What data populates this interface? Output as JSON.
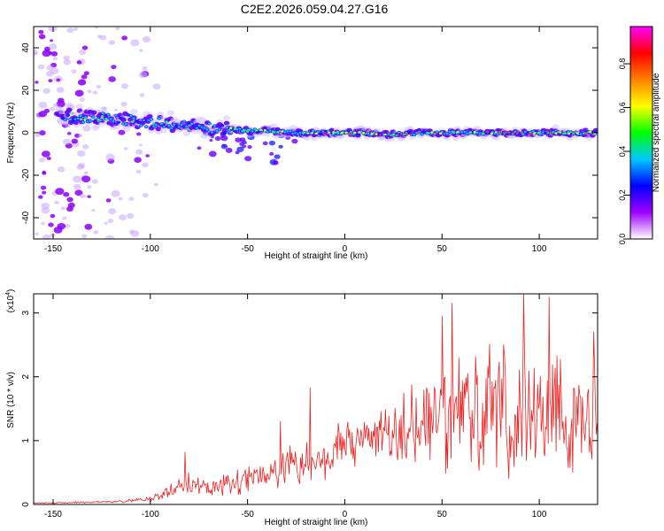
{
  "title": "C2E2.2026.059.04.27.G16",
  "chart_data": [
    {
      "type": "heatmap",
      "xlabel": "Height of straight line (km)",
      "ylabel": "Frequency (Hz)",
      "xlim": [
        -160,
        130
      ],
      "ylim": [
        -50,
        50
      ],
      "xticks": [
        -150,
        -100,
        -50,
        0,
        50,
        100
      ],
      "yticks": [
        -40,
        -20,
        0,
        20,
        40
      ],
      "ridge": {
        "x": [
          -145,
          -130,
          -110,
          -100,
          -90,
          -80,
          -70,
          -60,
          -50,
          -40,
          -30,
          -20,
          -10,
          0,
          10,
          20,
          40,
          60,
          80,
          100,
          130
        ],
        "freq": [
          8,
          7,
          6,
          5,
          4,
          3,
          2,
          2,
          1,
          1,
          0,
          0,
          0,
          0,
          0,
          -1,
          0,
          0,
          0,
          0,
          0
        ]
      },
      "colorbar": {
        "label": "Normalized spectral amplitude",
        "range": [
          0,
          0.97
        ],
        "ticks": [
          0,
          0.2,
          0.4,
          0.6,
          0.8
        ],
        "tick_labels": [
          "0.0",
          "0.2",
          "0.4",
          "0.6",
          "0.8"
        ],
        "colors": [
          "#ffffff",
          "#a000ff",
          "#0000ff",
          "#00c8ff",
          "#00ff00",
          "#ffff00",
          "#ff8000",
          "#ff0000",
          "#ff00ff"
        ]
      }
    },
    {
      "type": "line",
      "xlabel": "Height of straight line (km)",
      "ylabel": "SNR (10 * v/v)",
      "multiplier": "(x10",
      "multiplier_exp": "4",
      "multiplier_close": ")",
      "xlim": [
        -160,
        130
      ],
      "ylim": [
        0,
        3.3
      ],
      "xticks": [
        -150,
        -100,
        -50,
        0,
        50,
        100
      ],
      "yticks": [
        0,
        1,
        2,
        3
      ],
      "line_color": "#ee2222",
      "envelope": {
        "x": [
          -160,
          -120,
          -100,
          -90,
          -82,
          -70,
          -50,
          -40,
          -30,
          -20,
          -10,
          0,
          10,
          20,
          30,
          40,
          50,
          60,
          80,
          100,
          130
        ],
        "mean": [
          0.02,
          0.04,
          0.08,
          0.2,
          0.3,
          0.25,
          0.35,
          0.45,
          0.55,
          0.65,
          0.75,
          0.95,
          1.0,
          1.05,
          1.15,
          1.3,
          1.4,
          1.45,
          1.5,
          1.5,
          1.45
        ],
        "amp": [
          0.01,
          0.02,
          0.05,
          0.12,
          0.22,
          0.18,
          0.25,
          0.32,
          0.45,
          0.5,
          0.45,
          0.45,
          0.45,
          0.55,
          0.7,
          0.85,
          1.0,
          1.1,
          1.2,
          1.25,
          1.15
        ]
      },
      "peaks": [
        {
          "x": -82,
          "y": 0.82
        },
        {
          "x": -33,
          "y": 1.3
        },
        {
          "x": -18,
          "y": 1.83
        },
        {
          "x": 50,
          "y": 2.95
        },
        {
          "x": 55,
          "y": 3.15
        },
        {
          "x": 92,
          "y": 3.3
        },
        {
          "x": 105,
          "y": 3.25
        },
        {
          "x": 128,
          "y": 2.7
        }
      ]
    }
  ]
}
